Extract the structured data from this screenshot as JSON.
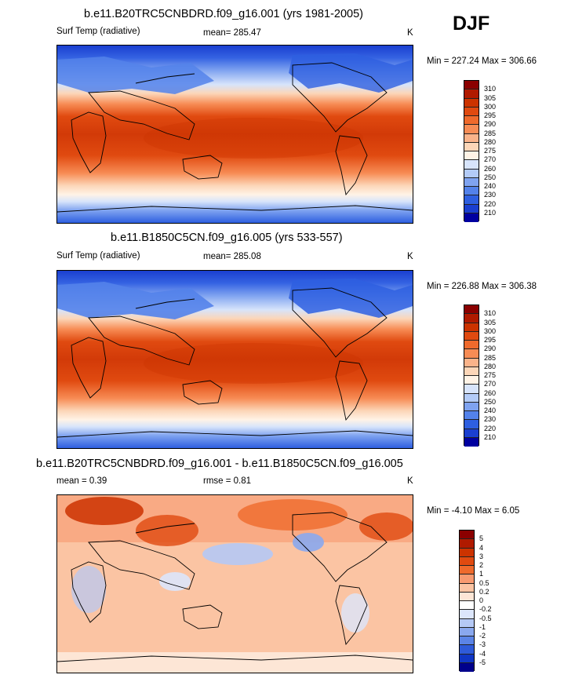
{
  "season": "DJF",
  "panels": [
    {
      "title": "b.e11.B20TRC5CNBDRD.f09_g16.001 (yrs 1981-2005)",
      "left_label": "Surf Temp (radiative)",
      "center_label": "mean= 285.47",
      "units": "K",
      "minmax": "Min = 227.24 Max = 306.66"
    },
    {
      "title": "b.e11.B1850C5CN.f09_g16.005 (yrs 533-557)",
      "left_label": "Surf Temp (radiative)",
      "center_label": "mean= 285.08",
      "units": "K",
      "minmax": "Min = 226.88 Max = 306.38"
    },
    {
      "title": "b.e11.B20TRC5CNBDRD.f09_g16.001 - b.e11.B1850C5CN.f09_g16.005",
      "left_label": "mean =   0.39",
      "center_label": "rmse =   0.81",
      "units": "K",
      "minmax": "Min =  -4.10 Max =   6.05"
    }
  ],
  "colorbars": {
    "absolute": {
      "labels": [
        "310",
        "305",
        "300",
        "295",
        "290",
        "285",
        "280",
        "275",
        "270",
        "260",
        "250",
        "240",
        "230",
        "220",
        "210"
      ],
      "colors": [
        "#8b0000",
        "#b01a00",
        "#cc3300",
        "#e04a10",
        "#ef6a2c",
        "#f78c55",
        "#fab38a",
        "#fcd6b8",
        "#fff3e6",
        "#d7e4fb",
        "#b3cbf7",
        "#7fa3f0",
        "#5382ea",
        "#2e5fe0",
        "#1a3fd0",
        "#0000a0"
      ]
    },
    "difference": {
      "labels": [
        "5",
        "4",
        "3",
        "2",
        "1",
        "0.5",
        "0.2",
        "0",
        "-0.2",
        "-0.5",
        "-1",
        "-2",
        "-3",
        "-4",
        "-5"
      ],
      "colors": [
        "#8b0000",
        "#b01a00",
        "#cc3300",
        "#e04a10",
        "#ef6a2c",
        "#f89a70",
        "#fbc4a3",
        "#fde6d6",
        "#ffffff",
        "#dce6fb",
        "#b5c9f5",
        "#8aa8ee",
        "#5b84e6",
        "#2f5bd9",
        "#1036c4",
        "#00008b"
      ]
    }
  },
  "chart_data": [
    {
      "type": "heatmap",
      "title": "b.e11.B20TRC5CNBDRD.f09_g16.001 (yrs 1981-2005)",
      "variable": "Surf Temp (radiative)",
      "units": "K",
      "mean": 285.47,
      "min": 227.24,
      "max": 306.66,
      "contour_levels": [
        210,
        220,
        230,
        240,
        250,
        260,
        270,
        275,
        280,
        285,
        290,
        295,
        300,
        305,
        310
      ]
    },
    {
      "type": "heatmap",
      "title": "b.e11.B1850C5CN.f09_g16.005 (yrs 533-557)",
      "variable": "Surf Temp (radiative)",
      "units": "K",
      "mean": 285.08,
      "min": 226.88,
      "max": 306.38,
      "contour_levels": [
        210,
        220,
        230,
        240,
        250,
        260,
        270,
        275,
        280,
        285,
        290,
        295,
        300,
        305,
        310
      ]
    },
    {
      "type": "heatmap",
      "title": "b.e11.B20TRC5CNBDRD.f09_g16.001 - b.e11.B1850C5CN.f09_g16.005",
      "units": "K",
      "mean": 0.39,
      "rmse": 0.81,
      "min": -4.1,
      "max": 6.05,
      "contour_levels": [
        -5,
        -4,
        -3,
        -2,
        -1,
        -0.5,
        -0.2,
        0,
        0.2,
        0.5,
        1,
        2,
        3,
        4,
        5
      ]
    }
  ]
}
